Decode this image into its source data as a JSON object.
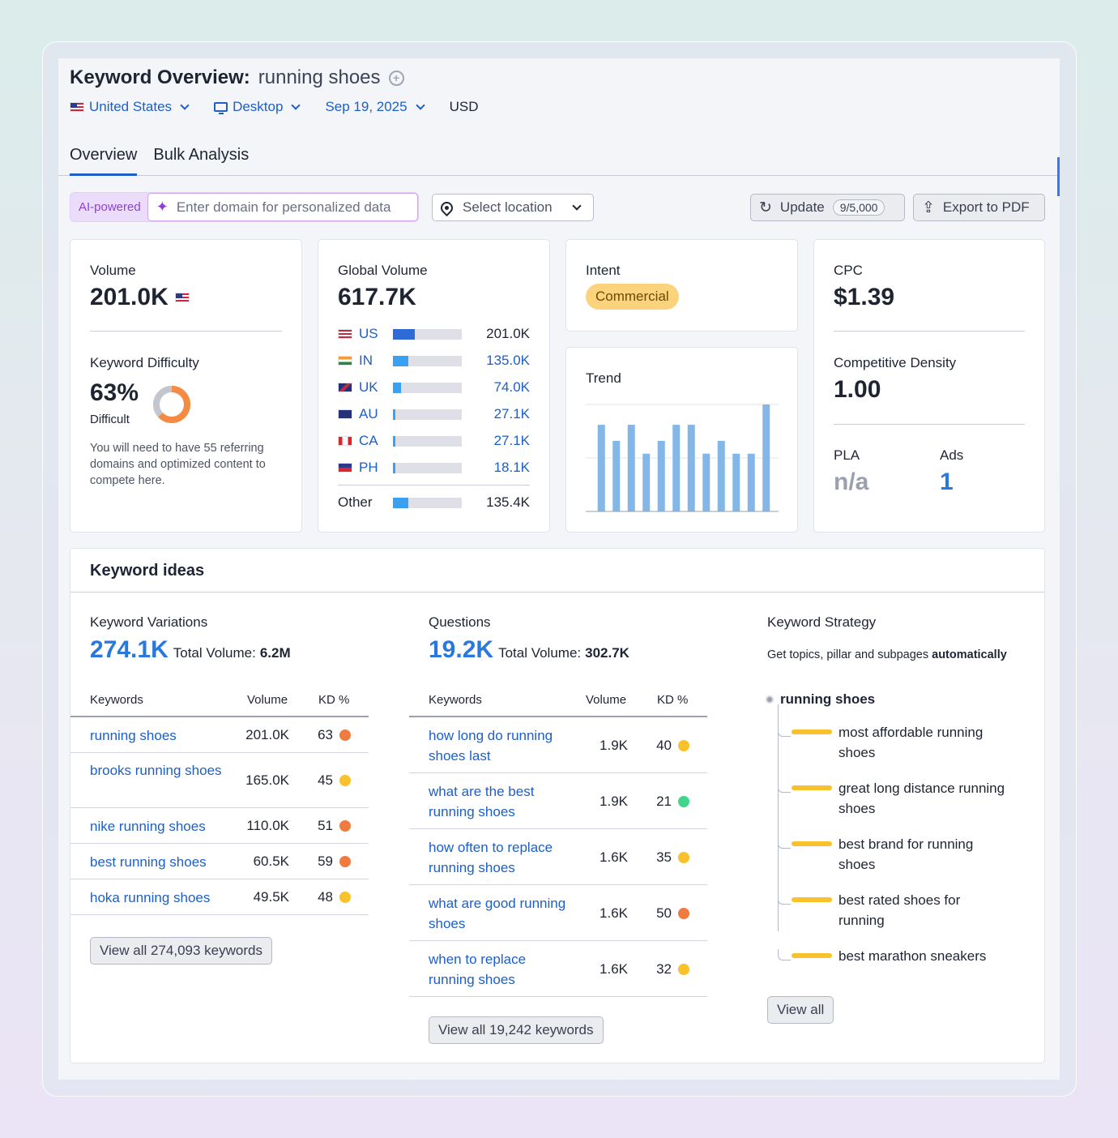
{
  "header": {
    "title": "Keyword Overview:",
    "keyword": "running shoes",
    "add_icon": "plus-circle-icon",
    "country": "United States",
    "device": "Desktop",
    "date": "Sep 19, 2025",
    "currency": "USD"
  },
  "tabs": [
    {
      "label": "Overview",
      "active": true
    },
    {
      "label": "Bulk Analysis",
      "active": false
    }
  ],
  "toolbar": {
    "ai_label": "AI-powered",
    "domain_placeholder": "Enter domain for personalized data",
    "location_placeholder": "Select location",
    "update_label": "Update",
    "update_count": "9/5,000",
    "export_label": "Export to PDF"
  },
  "volume": {
    "label": "Volume",
    "value": "201.0K"
  },
  "difficulty": {
    "label": "Keyword Difficulty",
    "percent": "63%",
    "percent_value": 63,
    "level": "Difficult",
    "note": "You will need to have 55 referring domains and optimized content to compete here."
  },
  "global_volume": {
    "label": "Global Volume",
    "value": "617.7K",
    "countries": [
      {
        "code": "US",
        "value": "201.0K",
        "share": 0.32
      },
      {
        "code": "IN",
        "value": "135.0K",
        "share": 0.22
      },
      {
        "code": "UK",
        "value": "74.0K",
        "share": 0.12
      },
      {
        "code": "AU",
        "value": "27.1K",
        "share": 0.04
      },
      {
        "code": "CA",
        "value": "27.1K",
        "share": 0.04
      },
      {
        "code": "PH",
        "value": "18.1K",
        "share": 0.03
      }
    ],
    "other": {
      "label": "Other",
      "value": "135.4K",
      "share": 0.22
    }
  },
  "intent": {
    "label": "Intent",
    "value": "Commercial"
  },
  "trend": {
    "label": "Trend",
    "values": [
      0.81,
      0.66,
      0.81,
      0.54,
      0.66,
      0.81,
      0.81,
      0.54,
      0.66,
      0.54,
      0.54,
      1.0
    ]
  },
  "cpc": {
    "label": "CPC",
    "value": "$1.39"
  },
  "competitive_density": {
    "label": "Competitive Density",
    "value": "1.00"
  },
  "pla": {
    "label": "PLA",
    "value": "n/a"
  },
  "ads": {
    "label": "Ads",
    "value": "1"
  },
  "keyword_ideas": {
    "title": "Keyword ideas",
    "variations": {
      "label": "Keyword Variations",
      "count": "274.1K",
      "total_label": "Total Volume:",
      "total_value": "6.2M",
      "columns": [
        "Keywords",
        "Volume",
        "KD %"
      ],
      "rows": [
        {
          "keyword": "running shoes",
          "volume": "201.0K",
          "kd": "63",
          "kd_color": "#f07b3f"
        },
        {
          "keyword": "brooks running shoes",
          "volume": "165.0K",
          "kd": "45",
          "kd_color": "#f9c12b"
        },
        {
          "keyword": "nike running shoes",
          "volume": "110.0K",
          "kd": "51",
          "kd_color": "#f07b3f"
        },
        {
          "keyword": "best running shoes",
          "volume": "60.5K",
          "kd": "59",
          "kd_color": "#f07b3f"
        },
        {
          "keyword": "hoka running shoes",
          "volume": "49.5K",
          "kd": "48",
          "kd_color": "#f9c12b"
        }
      ],
      "view_all": "View all 274,093 keywords"
    },
    "questions": {
      "label": "Questions",
      "count": "19.2K",
      "total_label": "Total Volume:",
      "total_value": "302.7K",
      "columns": [
        "Keywords",
        "Volume",
        "KD %"
      ],
      "rows": [
        {
          "keyword": "how long do running shoes last",
          "volume": "1.9K",
          "kd": "40",
          "kd_color": "#f9c12b"
        },
        {
          "keyword": "what are the best running shoes",
          "volume": "1.9K",
          "kd": "21",
          "kd_color": "#3fd68b"
        },
        {
          "keyword": "how often to replace running shoes",
          "volume": "1.6K",
          "kd": "35",
          "kd_color": "#f9c12b"
        },
        {
          "keyword": "what are good running shoes",
          "volume": "1.6K",
          "kd": "50",
          "kd_color": "#f07b3f"
        },
        {
          "keyword": "when to replace running shoes",
          "volume": "1.6K",
          "kd": "32",
          "kd_color": "#f9c12b"
        }
      ],
      "view_all": "View all 19,242 keywords"
    },
    "strategy": {
      "label": "Keyword Strategy",
      "desc_prefix": "Get topics, pillar and subpages",
      "desc_bold": "automatically",
      "root": "running shoes",
      "items": [
        "most affordable running shoes",
        "great long distance running shoes",
        "best brand for running shoes",
        "best rated shoes for running",
        "best marathon sneakers"
      ],
      "view_all": "View all"
    }
  },
  "colors": {
    "accent": "#1d5fc7",
    "trend_bar": "#84b6e8",
    "ai_purple": "#8d3fd6",
    "donut_orange": "#f58a42"
  }
}
